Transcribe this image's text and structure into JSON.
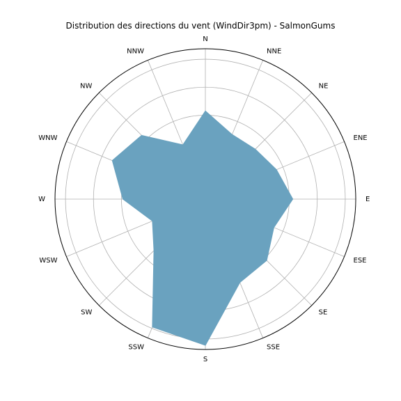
{
  "chart_data": {
    "type": "area",
    "subtype": "polar-radar",
    "title": "Distribution des directions du vent (WindDir3pm) - SalmonGums",
    "directions": [
      "N",
      "NNE",
      "NE",
      "ENE",
      "E",
      "ESE",
      "SE",
      "SSE",
      "S",
      "SSW",
      "SW",
      "WSW",
      "W",
      "WNW",
      "NW",
      "NNW"
    ],
    "values": [
      126,
      100,
      101,
      110,
      125,
      106,
      124,
      129,
      209,
      198,
      104,
      82,
      118,
      144,
      129,
      84
    ],
    "rlim": [
      0,
      215
    ],
    "rticks": [
      40,
      80,
      120,
      160,
      200
    ],
    "direction": "clockwise",
    "zero_location": "N",
    "grid": true,
    "fill_color": "#6aa2bf",
    "fill_edge_color": "#6aa2bf",
    "grid_color": "#b0b0b0",
    "frame_color": "#000000"
  }
}
